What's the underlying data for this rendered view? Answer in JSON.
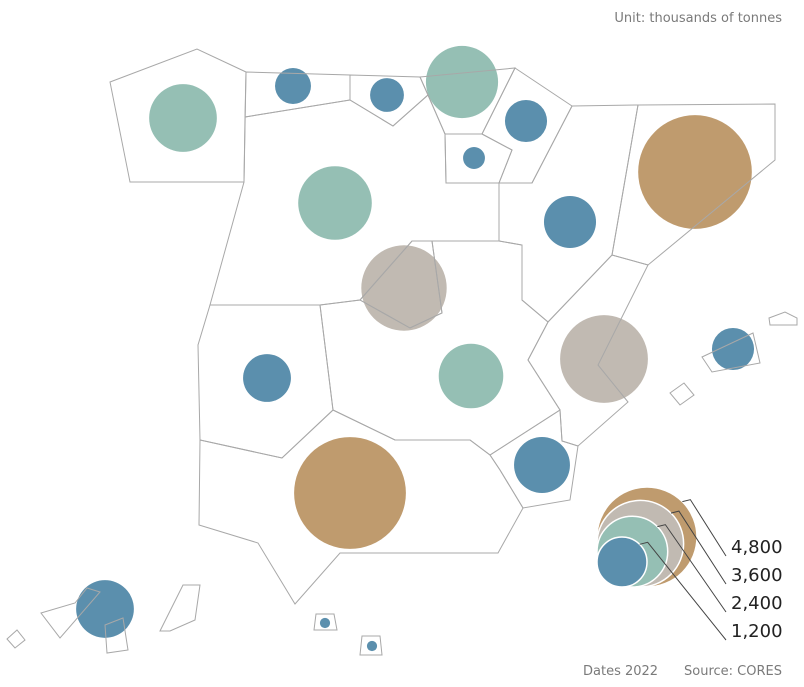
{
  "map": {
    "unit_note": "Unit: thousands of tonnes",
    "date_note": "Dates 2022",
    "source": "Source: CORES",
    "size_reference": 4800,
    "legend": [
      {
        "value": 4800,
        "label": "4,800",
        "color": "#bf9b6e"
      },
      {
        "value": 3600,
        "label": "3,600",
        "color": "#c1bab2"
      },
      {
        "value": 2400,
        "label": "2,400",
        "color": "#95bfb4"
      },
      {
        "value": 1200,
        "label": "1,200",
        "color": "#5b8fad"
      }
    ],
    "bubbles": [
      {
        "value": 2200,
        "color": "#95bfb4"
      },
      {
        "value": 620,
        "color": "#5b8fad"
      },
      {
        "value": 550,
        "color": "#5b8fad"
      },
      {
        "value": 2500,
        "color": "#95bfb4"
      },
      {
        "value": 850,
        "color": "#5b8fad"
      },
      {
        "value": 230,
        "color": "#5b8fad"
      },
      {
        "value": 1300,
        "color": "#5b8fad"
      },
      {
        "value": 6200,
        "color": "#bf9b6e"
      },
      {
        "value": 2600,
        "color": "#95bfb4"
      },
      {
        "value": 3500,
        "color": "#c1bab2"
      },
      {
        "value": 3700,
        "color": "#c1bab2"
      },
      {
        "value": 850,
        "color": "#5b8fad"
      },
      {
        "value": 1100,
        "color": "#5b8fad"
      },
      {
        "value": 2000,
        "color": "#95bfb4"
      },
      {
        "value": 1500,
        "color": "#5b8fad"
      },
      {
        "value": 6000,
        "color": "#bf9b6e"
      },
      {
        "value": 1600,
        "color": "#5b8fad"
      },
      {
        "value": 50,
        "color": "#5b8fad"
      },
      {
        "value": 50,
        "color": "#5b8fad"
      }
    ]
  }
}
